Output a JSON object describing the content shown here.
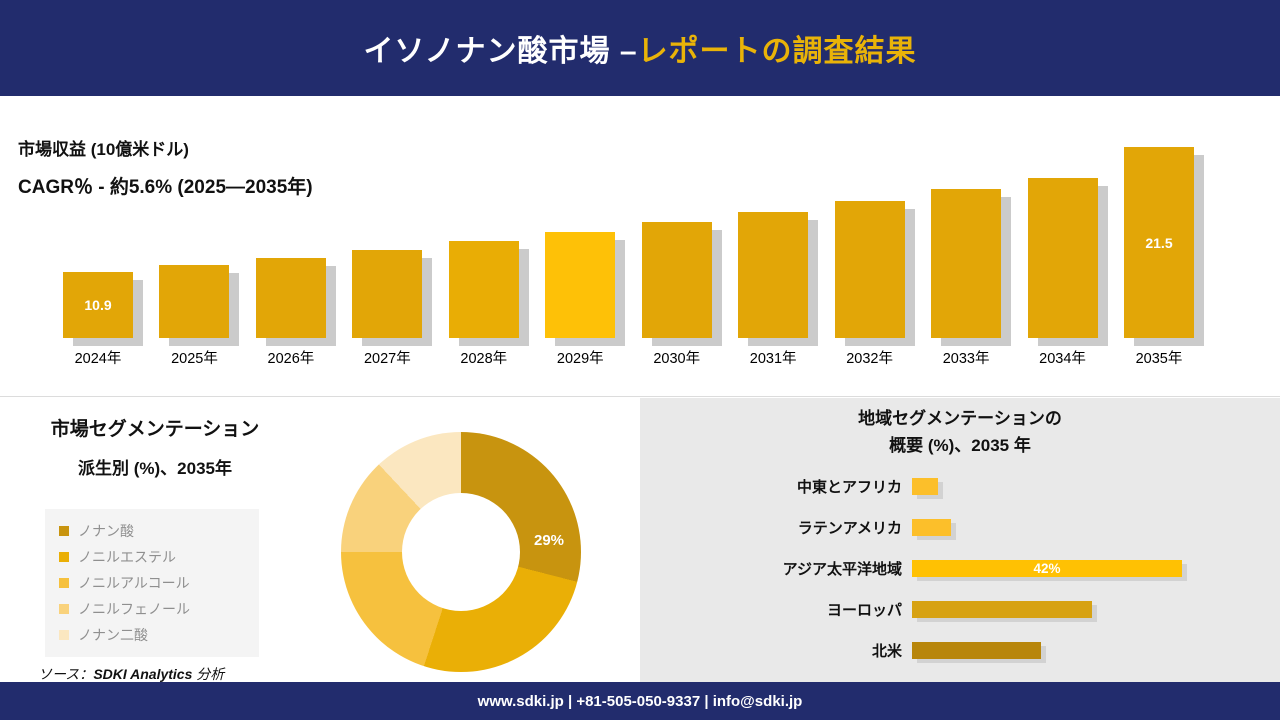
{
  "header": {
    "title_main": "イソノナン酸市場 –",
    "title_accent": "レポートの調査結果"
  },
  "revenue": {
    "metric_label": "市場収益 (10億米ドル)",
    "cagr_label": "CAGR％ - 約5.6% (2025―2035年)"
  },
  "segmentation": {
    "title_line1": "市場セグメンテーション",
    "title_line2": "派生別 (%)、2035年",
    "source_prefix": "ソース：",
    "source_name": "SDKI Analytics",
    "source_suffix": " 分析"
  },
  "regional": {
    "title_line1": "地域セグメンテーションの",
    "title_line2": "概要 (%)、2035 年"
  },
  "footer": {
    "contact": "www.sdki.jp | +81-505-050-9337 | info@sdki.jp"
  },
  "colors": {
    "navy": "#222c6d",
    "accent_gold": "#e9b308",
    "bar_gold": "#e2a607",
    "bar_highlight": "#fec107",
    "shadow_gray": "#cbcbcb"
  },
  "chart_data": [
    {
      "id": "revenue_bars",
      "type": "bar",
      "title": "市場収益 (10億米ドル)",
      "subtitle": "CAGR％ - 約5.6% (2025―2035年)",
      "categories": [
        "2024年",
        "2025年",
        "2026年",
        "2027年",
        "2028年",
        "2029年",
        "2030年",
        "2031年",
        "2032年",
        "2033年",
        "2034年",
        "2035年"
      ],
      "values": [
        10.9,
        11.5,
        12.1,
        12.8,
        13.5,
        14.3,
        15.1,
        16.0,
        16.9,
        17.9,
        18.9,
        21.5
      ],
      "value_labels": [
        "10.9",
        "",
        "",
        "",
        "",
        "",
        "",
        "",
        "",
        "",
        "",
        "21.5"
      ],
      "bar_colors": [
        "#e2a607",
        "#e2a607",
        "#e2a607",
        "#e2a607",
        "#e9ad05",
        "#fec107",
        "#e2a607",
        "#e2a607",
        "#e2a607",
        "#e2a607",
        "#e2a607",
        "#e2a607"
      ],
      "ylabel": "10億米ドル",
      "ylim": [
        0,
        22
      ],
      "legend_position": "none",
      "grid": false
    },
    {
      "id": "derivative_donut",
      "type": "pie",
      "title": "市場セグメンテーション 派生別 (%)、2035年",
      "labels": [
        "ノナン酸",
        "ノニルエステル",
        "ノニルアルコール",
        "ノニルフェノール",
        "ノナン二酸"
      ],
      "values": [
        29,
        26,
        20,
        13,
        12
      ],
      "colors": [
        "#c8940f",
        "#eaaf06",
        "#f6c13e",
        "#f9d27c",
        "#fbe7c0"
      ],
      "shown_label": "29%",
      "legend_position": "left",
      "donut": true
    },
    {
      "id": "regional_hbar",
      "type": "bar",
      "orientation": "horizontal",
      "title": "地域セグメンテーションの概要 (%)、2035 年",
      "categories": [
        "中東とアフリカ",
        "ラテンアメリカ",
        "アジア太平洋地域",
        "ヨーロッパ",
        "北米"
      ],
      "values": [
        4,
        6,
        42,
        28,
        20
      ],
      "value_labels": [
        "",
        "",
        "42%",
        "",
        ""
      ],
      "colors": [
        "#fcbf2a",
        "#fcbf2a",
        "#ffc103",
        "#d7a213",
        "#b8860b"
      ],
      "xlim": [
        0,
        45
      ],
      "grid": false
    }
  ]
}
